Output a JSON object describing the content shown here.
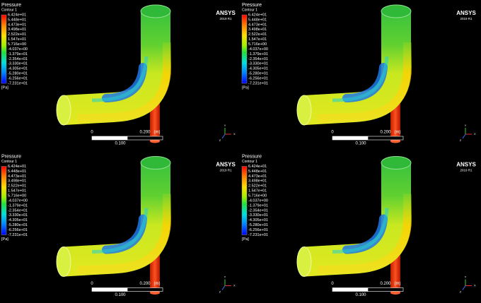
{
  "viewports": [
    {
      "legend": {
        "title": "Pressure",
        "subtitle": "Contour 1",
        "labels": [
          "6.424e+01",
          "5.448e+01",
          "4.473e+01",
          "3.498e+01",
          "2.522e+01",
          "1.547e+01",
          "5.716e+00",
          "-4.037e+00",
          "-1.379e+01",
          "-2.354e+01",
          "-3.330e+01",
          "-4.305e+01",
          "-5.280e+01",
          "-6.256e+01",
          "-7.231e+01"
        ],
        "unit": "[Pa]"
      },
      "logo": {
        "brand": "ANSYS",
        "version": "2019 R1"
      },
      "scale": {
        "start": "0",
        "end": "0.200",
        "unit": "(m)",
        "mid": "0.100"
      },
      "triad": {
        "y": "Y",
        "x": "X",
        "z": "Z"
      }
    },
    {
      "legend": {
        "title": "Pressure",
        "subtitle": "Contour 1",
        "labels": [
          "6.424e+01",
          "5.448e+01",
          "4.473e+01",
          "3.498e+01",
          "2.522e+01",
          "1.547e+01",
          "5.716e+00",
          "-4.037e+00",
          "-1.379e+01",
          "-2.354e+01",
          "-3.330e+01",
          "-4.305e+01",
          "-5.280e+01",
          "-6.256e+01",
          "-7.231e+01"
        ],
        "unit": "[Pa]"
      },
      "logo": {
        "brand": "ANSYS",
        "version": "2019 R1"
      },
      "scale": {
        "start": "0",
        "end": "0.200",
        "unit": "(m)",
        "mid": "0.100"
      },
      "triad": {
        "y": "Y",
        "x": "X",
        "z": "Z"
      }
    },
    {
      "legend": {
        "title": "Pressure",
        "subtitle": "Contour 1",
        "labels": [
          "6.424e+01",
          "5.448e+01",
          "4.473e+01",
          "3.498e+01",
          "2.522e+01",
          "1.547e+01",
          "5.716e+00",
          "-4.037e+00",
          "-1.379e+01",
          "-2.354e+01",
          "-3.330e+01",
          "-4.305e+01",
          "-5.280e+01",
          "-6.256e+01",
          "-7.231e+01"
        ],
        "unit": "[Pa]"
      },
      "logo": {
        "brand": "ANSYS",
        "version": "2019 R1"
      },
      "scale": {
        "start": "0",
        "end": "0.200",
        "unit": "(m)",
        "mid": "0.100"
      },
      "triad": {
        "y": "Y",
        "x": "X",
        "z": "Z"
      }
    },
    {
      "legend": {
        "title": "Pressure",
        "subtitle": "Contour 1",
        "labels": [
          "6.424e+01",
          "5.448e+01",
          "4.473e+01",
          "3.498e+01",
          "2.522e+01",
          "1.547e+01",
          "5.716e+00",
          "-4.037e+00",
          "-1.379e+01",
          "-2.354e+01",
          "-3.330e+01",
          "-4.305e+01",
          "-5.280e+01",
          "-6.256e+01",
          "-7.231e+01"
        ],
        "unit": "[Pa]"
      },
      "logo": {
        "brand": "ANSYS",
        "version": "2019 R1"
      },
      "scale": {
        "start": "0",
        "end": "0.200",
        "unit": "(m)",
        "mid": "0.100"
      },
      "triad": {
        "y": "Y",
        "x": "X",
        "z": "Z"
      }
    }
  ]
}
